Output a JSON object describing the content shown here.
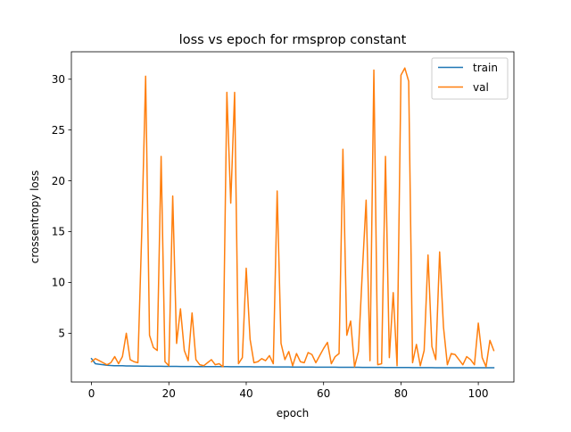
{
  "chart_data": {
    "type": "line",
    "title": "loss vs epoch for rmsprop constant",
    "xlabel": "epoch",
    "ylabel": "crossentropy loss",
    "xlim": [
      -5.2,
      109.2
    ],
    "ylim": [
      0.2,
      32.7
    ],
    "xticks": [
      0,
      20,
      40,
      60,
      80,
      100
    ],
    "yticks": [
      5,
      10,
      15,
      20,
      25,
      30
    ],
    "grid": false,
    "legend": "top-right",
    "series": [
      {
        "name": "train",
        "color": "#1f77b4",
        "x": [
          0,
          1,
          2,
          3,
          4,
          5,
          6,
          7,
          8,
          9,
          10,
          11,
          12,
          13,
          14,
          15,
          16,
          17,
          18,
          19,
          20,
          21,
          22,
          23,
          24,
          25,
          26,
          27,
          28,
          29,
          30,
          31,
          32,
          33,
          34,
          35,
          36,
          37,
          38,
          39,
          40,
          41,
          42,
          43,
          44,
          45,
          46,
          47,
          48,
          49,
          50,
          51,
          52,
          53,
          54,
          55,
          56,
          57,
          58,
          59,
          60,
          61,
          62,
          63,
          64,
          65,
          66,
          67,
          68,
          69,
          70,
          71,
          72,
          73,
          74,
          75,
          76,
          77,
          78,
          79,
          80,
          81,
          82,
          83,
          84,
          85,
          86,
          87,
          88,
          89,
          90,
          91,
          92,
          93,
          94,
          95,
          96,
          97,
          98,
          99,
          100,
          101,
          102,
          103,
          104
        ],
        "y": [
          2.5,
          2.0,
          1.95,
          1.9,
          1.85,
          1.82,
          1.8,
          1.8,
          1.8,
          1.78,
          1.78,
          1.77,
          1.77,
          1.76,
          1.76,
          1.75,
          1.75,
          1.75,
          1.75,
          1.74,
          1.74,
          1.74,
          1.74,
          1.73,
          1.73,
          1.73,
          1.73,
          1.72,
          1.72,
          1.72,
          1.72,
          1.72,
          1.71,
          1.71,
          1.71,
          1.71,
          1.7,
          1.7,
          1.7,
          1.7,
          1.7,
          1.7,
          1.69,
          1.69,
          1.69,
          1.69,
          1.69,
          1.68,
          1.68,
          1.68,
          1.68,
          1.68,
          1.67,
          1.67,
          1.67,
          1.67,
          1.67,
          1.67,
          1.66,
          1.66,
          1.66,
          1.66,
          1.66,
          1.66,
          1.65,
          1.65,
          1.65,
          1.65,
          1.65,
          1.65,
          1.64,
          1.64,
          1.64,
          1.64,
          1.64,
          1.64,
          1.63,
          1.63,
          1.63,
          1.63,
          1.63,
          1.63,
          1.63,
          1.62,
          1.62,
          1.62,
          1.62,
          1.62,
          1.62,
          1.61,
          1.61,
          1.61,
          1.61,
          1.61,
          1.61,
          1.61,
          1.6,
          1.6,
          1.6,
          1.6,
          1.6,
          1.6,
          1.6,
          1.6,
          1.6
        ]
      },
      {
        "name": "val",
        "color": "#ff7f0e",
        "x": [
          0,
          1,
          2,
          3,
          4,
          5,
          6,
          7,
          8,
          9,
          10,
          11,
          12,
          13,
          14,
          15,
          16,
          17,
          18,
          19,
          20,
          21,
          22,
          23,
          24,
          25,
          26,
          27,
          28,
          29,
          30,
          31,
          32,
          33,
          34,
          35,
          36,
          37,
          38,
          39,
          40,
          41,
          42,
          43,
          44,
          45,
          46,
          47,
          48,
          49,
          50,
          51,
          52,
          53,
          54,
          55,
          56,
          57,
          58,
          59,
          60,
          61,
          62,
          63,
          64,
          65,
          66,
          67,
          68,
          69,
          70,
          71,
          72,
          73,
          74,
          75,
          76,
          77,
          78,
          79,
          80,
          81,
          82,
          83,
          84,
          85,
          86,
          87,
          88,
          89,
          90,
          91,
          92,
          93,
          94,
          95,
          96,
          97,
          98,
          99,
          100,
          101,
          102,
          103,
          104
        ],
        "y": [
          2.2,
          2.5,
          2.3,
          2.1,
          1.9,
          2.1,
          2.7,
          2.0,
          2.7,
          5.0,
          2.4,
          2.2,
          2.1,
          15.0,
          30.3,
          4.8,
          3.6,
          3.3,
          22.4,
          2.2,
          1.8,
          18.5,
          4.0,
          7.4,
          3.3,
          2.3,
          7.0,
          2.4,
          1.9,
          1.8,
          2.1,
          2.4,
          1.9,
          2.0,
          1.7,
          28.7,
          17.8,
          28.7,
          2.0,
          2.6,
          11.4,
          4.4,
          2.1,
          2.2,
          2.5,
          2.3,
          2.8,
          2.0,
          19.0,
          4.0,
          2.4,
          3.2,
          1.8,
          3.0,
          2.2,
          2.1,
          3.1,
          2.9,
          2.1,
          2.8,
          3.5,
          4.1,
          2.0,
          2.7,
          3.0,
          23.1,
          4.8,
          6.2,
          1.7,
          3.2,
          10.9,
          18.1,
          2.3,
          30.9,
          1.9,
          2.0,
          22.4,
          2.6,
          9.0,
          1.8,
          30.4,
          31.1,
          29.8,
          2.1,
          3.9,
          1.8,
          3.3,
          12.7,
          3.7,
          2.4,
          13.0,
          5.6,
          1.9,
          3.0,
          2.9,
          2.4,
          1.9,
          2.7,
          2.4,
          1.9,
          6.0,
          2.6,
          1.7,
          4.3,
          3.3
        ]
      }
    ]
  }
}
